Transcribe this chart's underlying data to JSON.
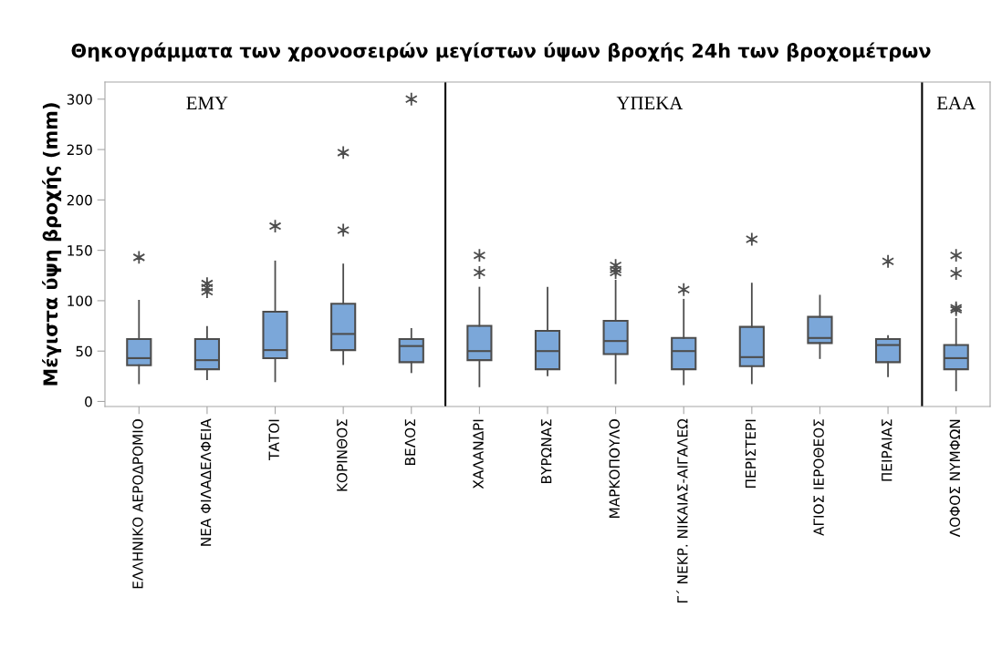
{
  "chart_data": {
    "type": "box",
    "title": "Θηκογράμματα των χρονοσειρών μεγίστων ύψων βροχής 24h των βροχομέτρων",
    "ylabel": "Μέγιστα ύψη βροχής (mm)",
    "categories": [
      "ΕΛΛΗΝΙΚΟ ΑΕΡΟΔΡΟΜΙΟ",
      "ΝΕΑ ΦΙΛΑΔΕΛΦΕΙΑ",
      "ΤΑΤΟΙ",
      "ΚΟΡΙΝΘΟΣ",
      "ΒΕΛΟΣ",
      "ΧΑΛΑΝΔΡΙ",
      "ΒΥΡΩΝΑΣ",
      "ΜΑΡΚΟΠΟΥΛΟ",
      "Γ΄ ΝΕΚΡ. ΝΙΚΑΙΑΣ-ΑΙΓΑΛΕΩ",
      "ΠΕΡΙΣΤΕΡΙ",
      "ΑΓΙΟΣ ΙΕΡΟΘΕΟΣ",
      "ΠΕΙΡΑΙΑΣ",
      "ΛΟΦΟΣ ΝΥΜΦΩΝ"
    ],
    "boxes": [
      {
        "low": 18,
        "q1": 36,
        "median": 43,
        "q3": 62,
        "high": 100,
        "outliers": [
          143
        ]
      },
      {
        "low": 22,
        "q1": 32,
        "median": 41,
        "q3": 62,
        "high": 74,
        "outliers": [
          109,
          113,
          117
        ]
      },
      {
        "low": 20,
        "q1": 43,
        "median": 51,
        "q3": 89,
        "high": 139,
        "outliers": [
          174
        ]
      },
      {
        "low": 37,
        "q1": 51,
        "median": 67,
        "q3": 97,
        "high": 136,
        "outliers": [
          170,
          247
        ]
      },
      {
        "low": 29,
        "q1": 39,
        "median": 55,
        "q3": 62,
        "high": 72,
        "outliers": [
          300
        ]
      },
      {
        "low": 15,
        "q1": 41,
        "median": 50,
        "q3": 75,
        "high": 113,
        "outliers": [
          128,
          145
        ]
      },
      {
        "low": 26,
        "q1": 32,
        "median": 50,
        "q3": 70,
        "high": 113
      },
      {
        "low": 18,
        "q1": 47,
        "median": 60,
        "q3": 80,
        "high": 120,
        "outliers": [
          128,
          131,
          135
        ]
      },
      {
        "low": 17,
        "q1": 32,
        "median": 50,
        "q3": 63,
        "high": 101,
        "outliers": [
          111
        ]
      },
      {
        "low": 18,
        "q1": 35,
        "median": 44,
        "q3": 74,
        "high": 117,
        "outliers": [
          161
        ]
      },
      {
        "low": 43,
        "q1": 58,
        "median": 63,
        "q3": 84,
        "high": 105
      },
      {
        "low": 25,
        "q1": 39,
        "median": 56,
        "q3": 62,
        "high": 65,
        "outliers": [
          139
        ]
      },
      {
        "low": 11,
        "q1": 32,
        "median": 43,
        "q3": 56,
        "high": 82,
        "outliers": [
          91,
          93,
          127,
          145
        ]
      }
    ],
    "color": "#7ba7d9",
    "annotations": [
      "ΕΜΥ",
      "ΥΠΕΚΑ",
      "ΕΑΑ"
    ],
    "ylim": [
      -5,
      317
    ],
    "yticks": [
      0,
      50,
      100,
      150,
      200,
      250,
      300
    ],
    "grid": false
  }
}
